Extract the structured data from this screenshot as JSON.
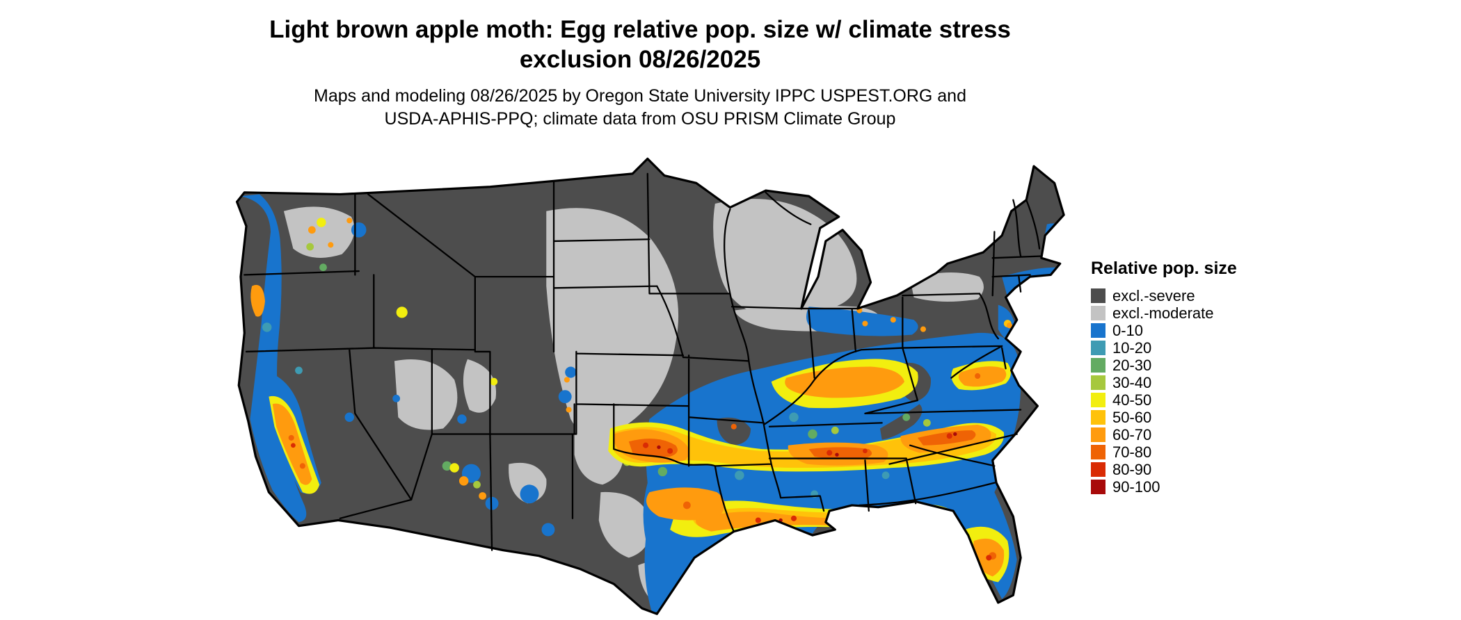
{
  "title": {
    "line1": "Light brown apple moth: Egg relative pop. size w/ climate stress",
    "line2": "exclusion 08/26/2025"
  },
  "subtitle": {
    "line1": "Maps and modeling 08/26/2025 by Oregon State University IPPC USPEST.ORG and",
    "line2": "USDA-APHIS-PPQ; climate data from OSU PRISM Climate Group"
  },
  "map": {
    "region": "Contiguous United States",
    "kind": "raster choropleth of relative population size with climate stress exclusion"
  },
  "legend": {
    "title": "Relative pop. size",
    "items": [
      {
        "label": "excl.-severe",
        "color": "#4D4D4D"
      },
      {
        "label": "excl.-moderate",
        "color": "#C3C3C3"
      },
      {
        "label": "0-10",
        "color": "#1874CD"
      },
      {
        "label": "10-20",
        "color": "#3E9BB3"
      },
      {
        "label": "20-30",
        "color": "#63AB62"
      },
      {
        "label": "30-40",
        "color": "#A6C83D"
      },
      {
        "label": "40-50",
        "color": "#F2EE0F"
      },
      {
        "label": "50-60",
        "color": "#FFC20A"
      },
      {
        "label": "60-70",
        "color": "#FF9B0E"
      },
      {
        "label": "70-80",
        "color": "#EF6305"
      },
      {
        "label": "80-90",
        "color": "#D92B04"
      },
      {
        "label": "90-100",
        "color": "#A80A0A"
      }
    ]
  }
}
